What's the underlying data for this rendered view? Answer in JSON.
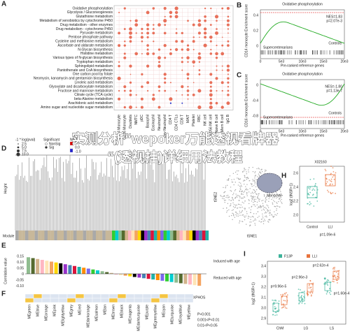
{
  "watermark": {
    "line1": "实测分析“wepoker万能透视看牌器",
    "line2": "“(透视挂)详细用法教程"
  },
  "panels": {
    "A": {
      "label": "A",
      "pathways": [
        "Oxidative phosphorylation",
        "Glycolysis / Gluconeogenesis",
        "Glutathione metabolism",
        "Metabolism of xenobiotics by cytochrome P450",
        "Drug metabolism - other enzymes",
        "Drug metabolism - cytochrome P450",
        "Pyruvate metabolism",
        "Pentose phosphate pathway",
        "Cysteine and methionine metabolism",
        "Ascorbate and aldarate metabolism",
        "N-Glycan biosynthesis",
        "Histidine metabolism",
        "Various types of N-glycan biosynthesis",
        "Tryptophan metabolism",
        "Sphingolipid metabolism",
        "Pantothenate and CoA biosynthesis",
        "One carbon pool by folate",
        "Neomycin, kanamycin and gentamicin biosynthesis",
        "Linoleic acid metabolism",
        "Glyoxylate and dicarboxylate metabolism",
        "Fructose and mannose metabolism",
        "Citrate cycle (TCA cycle)",
        "beta-Alanine metabolism",
        "Arachidonic acid metabolism",
        "Amino sugar and nucleotide sugar metabolism"
      ],
      "columns": [
        "CD14 Monocyte",
        "CD16 Monocyte",
        "Doublets",
        "NMTC",
        "pDC",
        "Basophil",
        "Eosinophil",
        "Neutrophil",
        "Dev Neutrophil",
        "CD4 T",
        "CD4 CTLs",
        "CD8 T",
        "MAIT",
        "Platelet",
        "RBC",
        "NK cell",
        "CD56 NK cell",
        "Naive B cell",
        "Mem B cell",
        "IgG B"
      ],
      "legend": {
        "size_title": "-1 * log(pval)",
        "sizes": [
          "2.5",
          "5.0",
          "7.5",
          "10.0"
        ],
        "sig_title": "Significant",
        "sig": [
          "NonSig",
          "Sig"
        ],
        "nes_title": "NES",
        "nes": [
          "1.0",
          "0.0",
          "-1.0"
        ]
      }
    },
    "B": {
      "label": "B",
      "title": "Oxidative phosphorylation",
      "nes": "NES=1.83",
      "p": "p=2.07e-3",
      "ylabel": "CD14 monocyte Enrichment score",
      "yticks": [
        "0.4",
        "0.2",
        "0"
      ],
      "left": "Supercentenarians",
      "right": "Controls",
      "xlabel": "Pre-ranked reference genes",
      "xticks": [
        "0",
        "5e3",
        "10e3",
        "15e3",
        "20e3"
      ]
    },
    "C": {
      "label": "C",
      "title": "Oxidative phosphorylation",
      "nes": "NES=-1.80",
      "p": "p=1.13e-7",
      "ylabel": "CD16 monocyte Enrichment score",
      "yticks": [
        "0",
        "-0.4",
        "-0.8"
      ],
      "left": "Supercentenarians",
      "right": "Controls",
      "xlabel": "Pre-ranked reference genes",
      "xticks": [
        "0",
        "5e3",
        "10e3",
        "15e3",
        "20e3"
      ]
    },
    "D": {
      "label": "D",
      "ylabel": "Height",
      "module": "Module"
    },
    "G": {
      "xlabel": "tSNE1",
      "ylabel": "tSNE2",
      "cluster": "Monocyte"
    },
    "H": {
      "label": "H",
      "title": "X02160",
      "ylabel": "log2 (tNSR+1)",
      "yticks": [
        "2.6",
        "2.4",
        "2.2",
        "2.0"
      ],
      "categories": [
        "Control",
        "LLI"
      ],
      "p": "p=1.09e-6"
    },
    "E": {
      "label": "E",
      "ylabel": "Correlation value",
      "yticks": [
        "0.15",
        "0.10",
        "0.05",
        "0",
        "-0.05",
        "-0.10"
      ],
      "induced": "Induced with age",
      "reduced": "Reduced with age"
    },
    "F": {
      "label": "F",
      "tag": "OXPHOS",
      "modules": [
        "MEgreen",
        "MEblue",
        "MEorange",
        "MEpink",
        "MElightyellow",
        "MEgrey",
        "MEred",
        "MEdarkorange",
        "MEsalmon",
        "MEtan",
        "MEbrown",
        "MEblack",
        "MEmagenta",
        "MEdarkturquoise",
        "MEpurple",
        "MEgreenyellow",
        "MEcyan",
        "MEturquoise",
        "MEroyalblue",
        "MEyellow"
      ],
      "legend": [
        "P<0.001",
        "0.001<P<0.01",
        "0.01<P<0.05"
      ]
    },
    "I": {
      "label": "I",
      "legend": [
        "F13P",
        "LLI"
      ],
      "ylabel": "log2 (tNSR+1)",
      "yticks": [
        "3.4",
        "3.3",
        "3.2",
        "3.1",
        "3.0",
        "2.9"
      ],
      "categories": [
        "ChM",
        "LG",
        "LS"
      ],
      "pvals": [
        "p=9.96e-5",
        "p=2.96e-3",
        "p=2.62e-4",
        "p=1.60e-4"
      ]
    }
  }
}
